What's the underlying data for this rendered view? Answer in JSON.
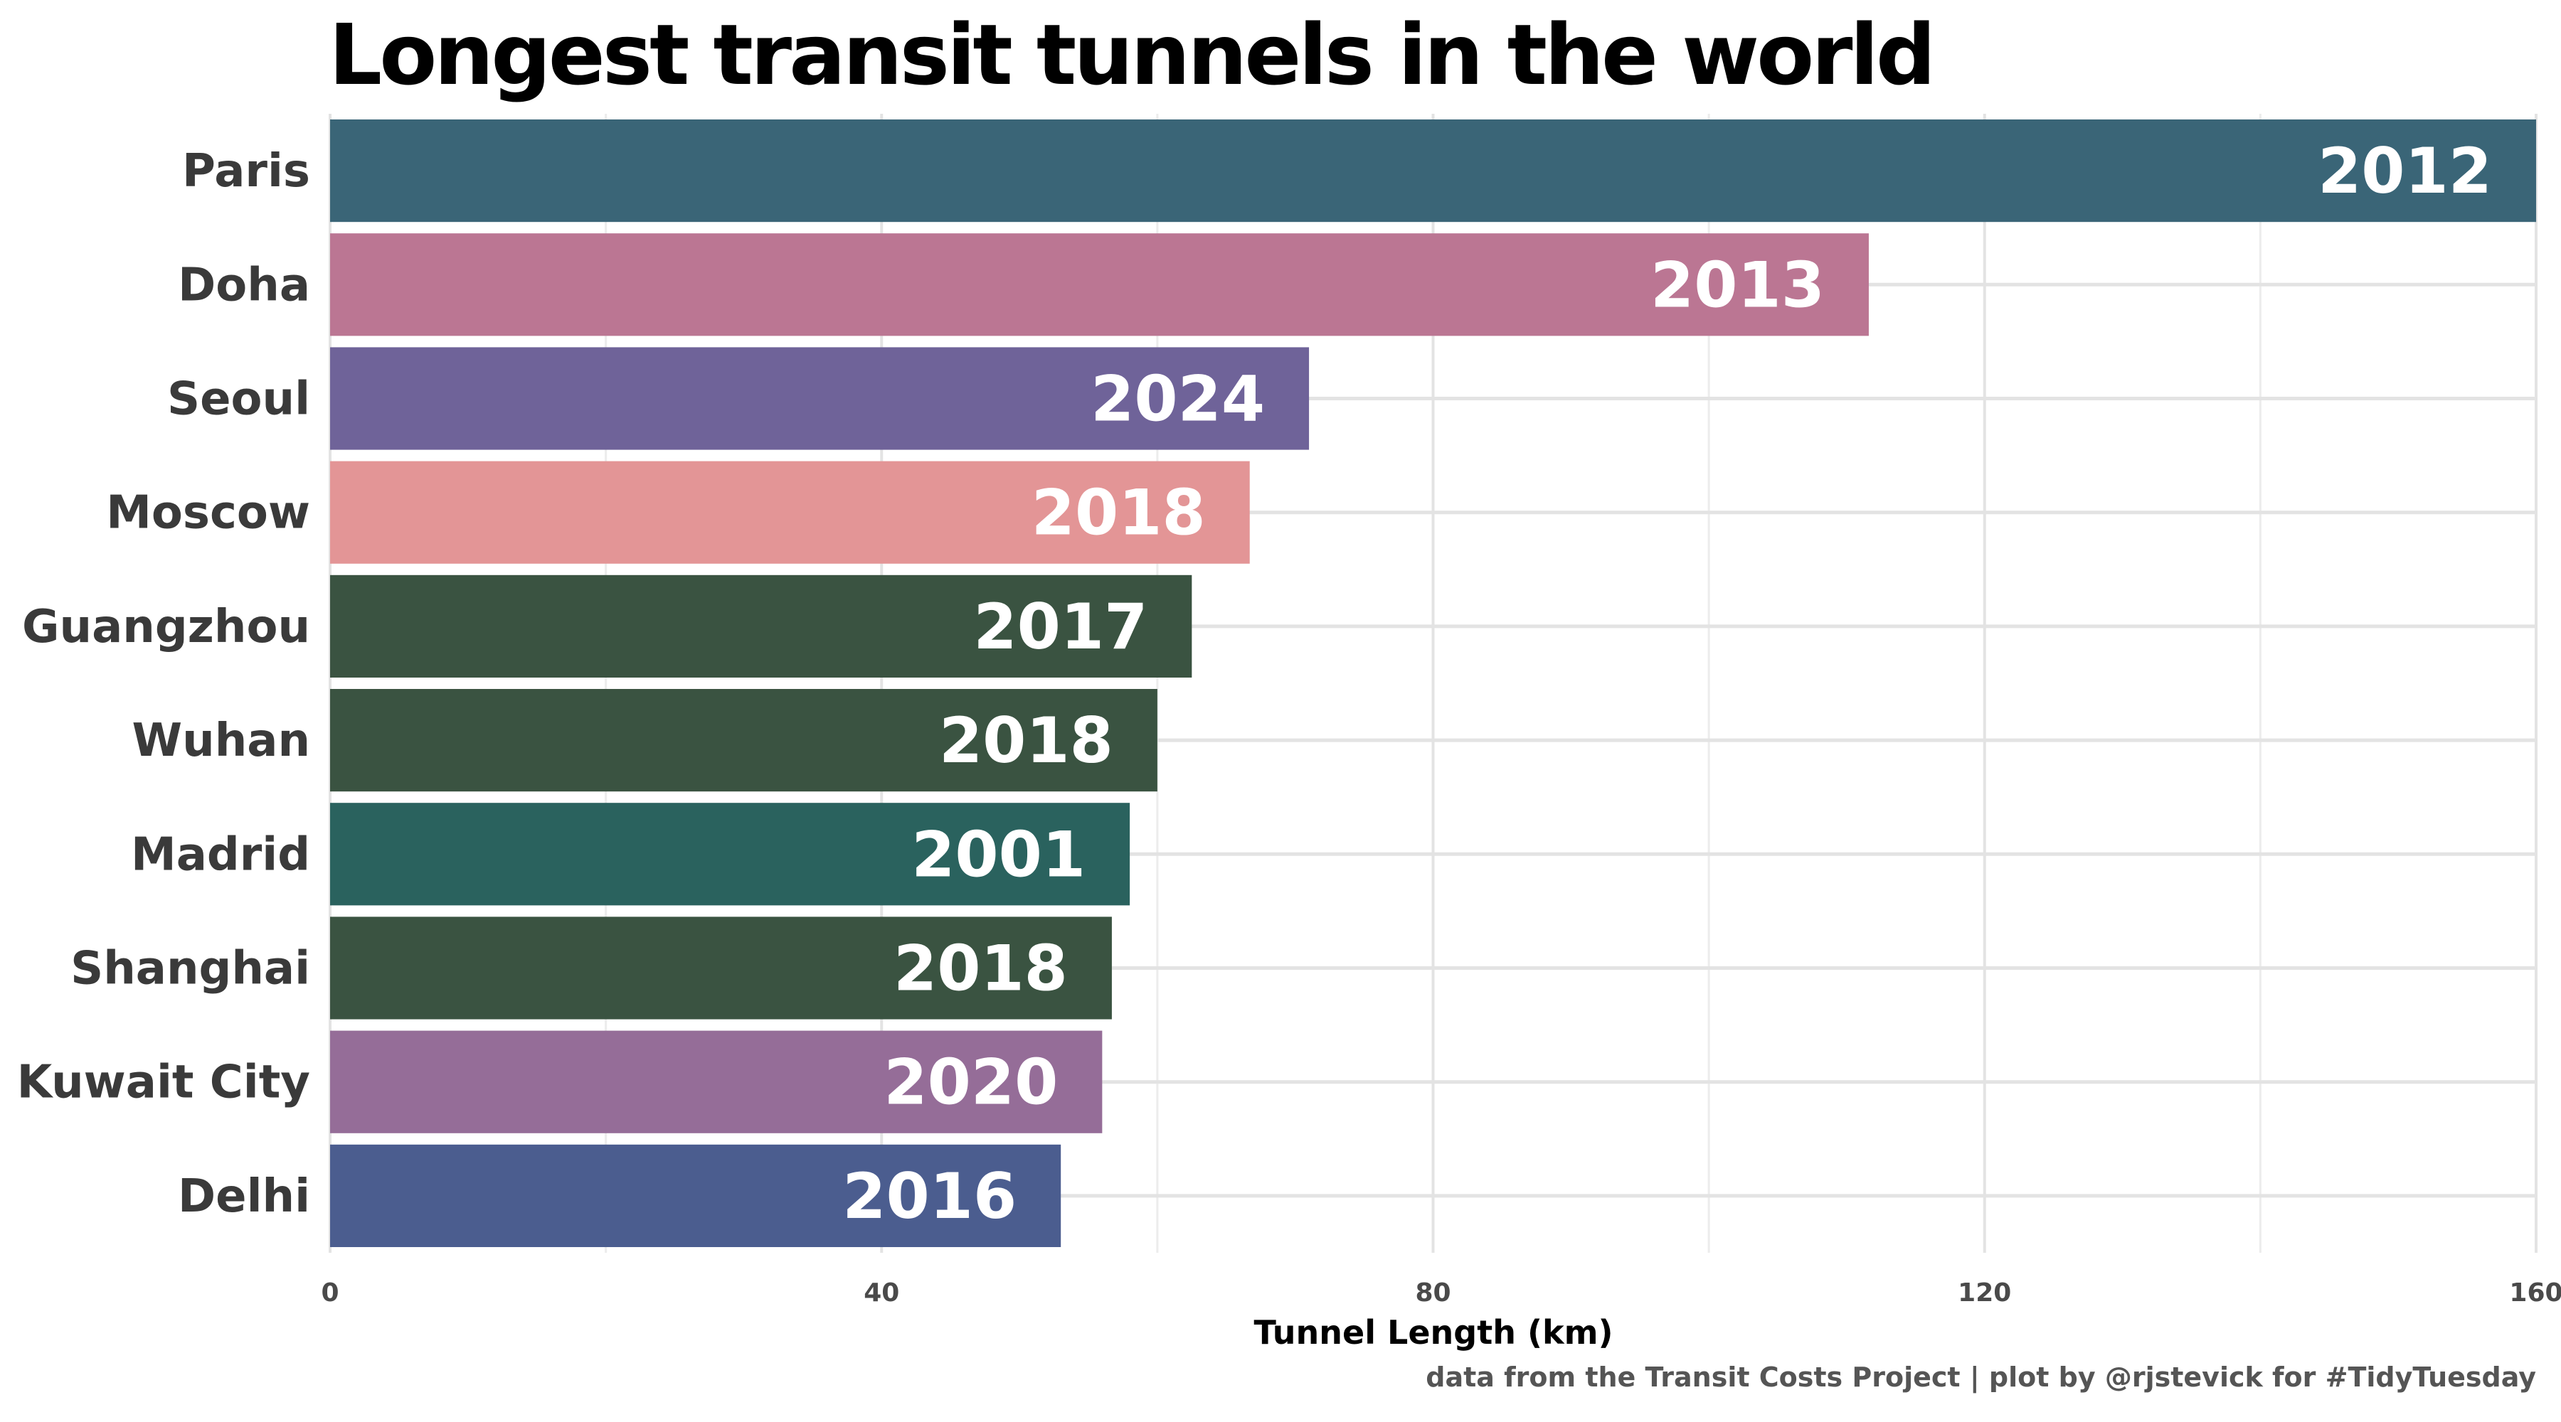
{
  "chart_data": {
    "type": "bar",
    "orientation": "horizontal",
    "title": "Longest transit tunnels in the world",
    "xlabel": "Tunnel Length (km)",
    "ylabel": "",
    "caption": "data from the Transit Costs Project | plot by @rjstevick for #TidyTuesday",
    "xlim": [
      0,
      160
    ],
    "x_ticks": [
      "0",
      "40",
      "80",
      "120",
      "160"
    ],
    "grid": true,
    "legend": "none",
    "categories": [
      "Paris",
      "Doha",
      "Seoul",
      "Moscow",
      "Guangzhou",
      "Wuhan",
      "Madrid",
      "Shanghai",
      "Kuwait City",
      "Delhi"
    ],
    "values": [
      160,
      111.6,
      71,
      66.7,
      62.5,
      60,
      58,
      56.7,
      56,
      53
    ],
    "bar_labels": [
      "2012",
      "2013",
      "2024",
      "2018",
      "2017",
      "2018",
      "2001",
      "2018",
      "2020",
      "2016"
    ],
    "colors": [
      "#3a6577",
      "#bb7693",
      "#6f6399",
      "#e39596",
      "#3a5341",
      "#3a5341",
      "#2a625e",
      "#3a5341",
      "#956d98",
      "#4b5d8f"
    ]
  }
}
